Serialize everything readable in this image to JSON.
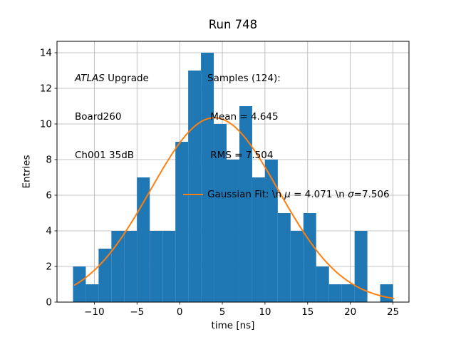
{
  "figure": {
    "title": "Run 748",
    "xlabel": "time [ns]",
    "ylabel": "Entries",
    "annotation": {
      "line1": [
        {
          "text": "ATLAS",
          "italic": true
        },
        {
          "text": " Upgrade",
          "italic": false
        }
      ],
      "line2": "Board260",
      "line3": "Ch001 35dB"
    },
    "legend": {
      "samples_title": "Samples (124):",
      "mean_line": " Mean = 4.645",
      "rms_line": " RMS = 7.504",
      "gaussian_label": [
        {
          "text": "Gaussian Fit: \\n ",
          "italic": false
        },
        {
          "text": "μ",
          "italic": true
        },
        {
          "text": " = 4.071 \\n ",
          "italic": false
        },
        {
          "text": "σ",
          "italic": true
        },
        {
          "text": "=7.506",
          "italic": false
        }
      ]
    }
  },
  "chart_data": {
    "type": "bar",
    "subtype": "histogram",
    "title": "Run 748",
    "xlabel": "time [ns]",
    "ylabel": "Entries",
    "n_samples": 124,
    "mean": 4.645,
    "rms": 7.504,
    "bin_edges": [
      -12.5,
      -11.0,
      -9.5,
      -8.0,
      -6.5,
      -5.0,
      -3.5,
      -2.0,
      -0.5,
      1.0,
      2.5,
      4.0,
      5.5,
      7.0,
      8.5,
      10.0,
      11.5,
      13.0,
      14.5,
      16.0,
      17.5,
      19.0,
      20.5,
      22.0,
      23.5,
      25.0
    ],
    "counts": [
      2,
      1,
      3,
      4,
      4,
      7,
      4,
      4,
      9,
      13,
      14,
      10,
      8,
      11,
      7,
      8,
      5,
      4,
      5,
      2,
      1,
      1,
      4,
      0,
      1
    ],
    "fit": {
      "type": "gaussian",
      "mu": 4.071,
      "sigma": 7.506,
      "amplitude": 10.35,
      "x_start": -12.3,
      "x_end": 25.1,
      "color": "#ff7f0e"
    },
    "bar_color": "#1f77b4",
    "grid_color": "#b0b0b0",
    "spine_color": "#000000",
    "grid_on": true,
    "legend_position": "upper right area, frameless",
    "xlim": [
      -14.375,
      26.875
    ],
    "ylim": [
      0,
      14.64
    ],
    "x_ticks": [
      {
        "v": -10,
        "label": "−10"
      },
      {
        "v": -5,
        "label": "−5"
      },
      {
        "v": 0,
        "label": "0"
      },
      {
        "v": 5,
        "label": "5"
      },
      {
        "v": 10,
        "label": "10"
      },
      {
        "v": 15,
        "label": "15"
      },
      {
        "v": 20,
        "label": "20"
      },
      {
        "v": 25,
        "label": "25"
      }
    ],
    "y_ticks": [
      {
        "v": 0,
        "label": "0"
      },
      {
        "v": 2,
        "label": "2"
      },
      {
        "v": 4,
        "label": "4"
      },
      {
        "v": 6,
        "label": "6"
      },
      {
        "v": 8,
        "label": "8"
      },
      {
        "v": 10,
        "label": "10"
      },
      {
        "v": 12,
        "label": "12"
      },
      {
        "v": 14,
        "label": "14"
      }
    ]
  }
}
